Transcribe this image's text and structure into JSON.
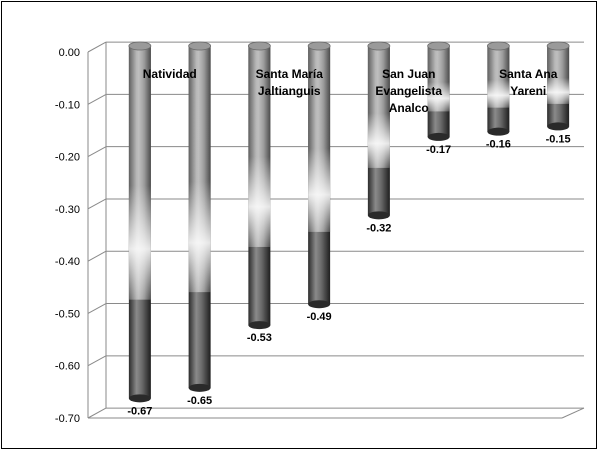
{
  "chart_data": {
    "type": "bar",
    "style": "3d-cylinder",
    "categories": [
      "Natividad",
      "",
      "Santa María Jaltianguis",
      "",
      "San Juan Evangelista Analco",
      "",
      "Santa Ana Yareni",
      ""
    ],
    "category_labels": [
      {
        "lines": [
          "Natividad"
        ]
      },
      {
        "lines": [
          "Santa María",
          "Jaltianguis"
        ]
      },
      {
        "lines": [
          "San Juan",
          "Evangelista",
          "Analco"
        ]
      },
      {
        "lines": [
          "Santa Ana",
          "Yareni"
        ]
      }
    ],
    "values": [
      -0.67,
      -0.65,
      -0.53,
      -0.49,
      -0.32,
      -0.17,
      -0.16,
      -0.15
    ],
    "data_labels": [
      "-0.67",
      "-0.65",
      "-0.53",
      "-0.49",
      "-0.32",
      "-0.17",
      "-0.16",
      "-0.15"
    ],
    "y_ticks": [
      "0.00",
      "-0.10",
      "-0.20",
      "-0.30",
      "-0.40",
      "-0.50",
      "-0.60",
      "-0.70"
    ],
    "ylim": [
      -0.7,
      0
    ],
    "grid": true,
    "legend": "none",
    "title": "",
    "xlabel": "",
    "ylabel": ""
  }
}
